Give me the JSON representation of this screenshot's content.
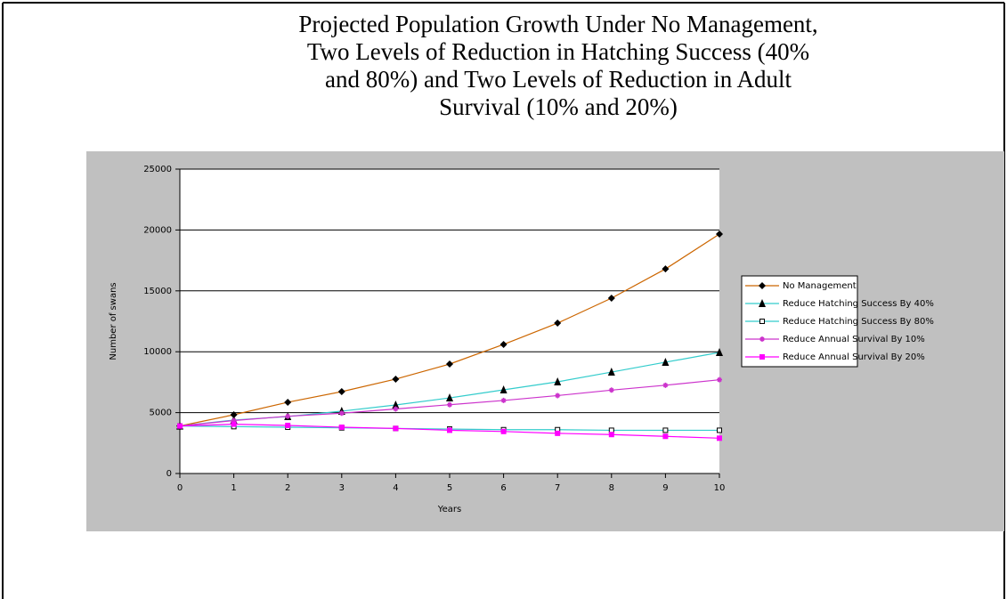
{
  "chart_data": {
    "type": "line",
    "title": [
      "Projected Population Growth Under No Management,",
      "Two Levels of Reduction in Hatching Success (40%",
      "and 80%) and Two Levels of Reduction in Adult",
      "Survival (10% and 20%)"
    ],
    "x_label": "Years",
    "y_label": "Number of swans",
    "x": [
      0,
      1,
      2,
      3,
      4,
      5,
      6,
      7,
      8,
      9,
      10
    ],
    "xlim": [
      0,
      10
    ],
    "xticks": [
      0,
      1,
      2,
      3,
      4,
      5,
      6,
      7,
      8,
      9,
      10
    ],
    "ylim": [
      0,
      25000
    ],
    "yticks": [
      0,
      5000,
      10000,
      15000,
      20000,
      25000
    ],
    "grid": true,
    "legend": "right",
    "series": [
      {
        "name": "No Management",
        "color": "#cc6600",
        "marker": "diamond",
        "values": [
          3900,
          4825,
          5850,
          6725,
          7750,
          8990,
          10600,
          12350,
          14400,
          16800,
          19660
        ]
      },
      {
        "name": "Reduce Hatching Success By 40%",
        "color": "#33cccc",
        "marker": "triangle",
        "values": [
          3900,
          4390,
          4680,
          5120,
          5630,
          6210,
          6870,
          7530,
          8330,
          9140,
          9940
        ]
      },
      {
        "name": "Reduce Hatching Success By 80%",
        "color": "#33cccc",
        "marker": "square-open",
        "values": [
          3900,
          3850,
          3800,
          3750,
          3700,
          3650,
          3600,
          3600,
          3550,
          3550,
          3550
        ]
      },
      {
        "name": "Reduce Annual Survival By 10%",
        "color": "#cc33cc",
        "marker": "star",
        "values": [
          3900,
          4350,
          4700,
          4950,
          5300,
          5650,
          6000,
          6400,
          6850,
          7250,
          7700
        ]
      },
      {
        "name": "Reduce Annual Survival By 20%",
        "color": "#ff00ff",
        "marker": "square",
        "values": [
          3900,
          4050,
          3950,
          3800,
          3700,
          3550,
          3450,
          3300,
          3200,
          3050,
          2900
        ]
      }
    ]
  }
}
